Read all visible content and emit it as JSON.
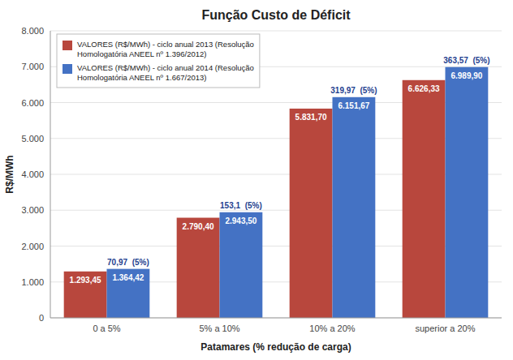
{
  "chart_data": {
    "type": "bar",
    "title": "Função Custo de Déficit",
    "xlabel": "Patamares (% redução de carga)",
    "ylabel": "R$/MWh",
    "categories": [
      "0 a 5%",
      "5% a 10%",
      "10% a 20%",
      "superior a 20%"
    ],
    "series": [
      {
        "name": "VALORES (R$/MWh) - ciclo anual 2013 (Resolução\nHomologatória ANEEL nº 1.396/2012)",
        "color": "#B8473D",
        "values": [
          1293.45,
          2790.4,
          5831.7,
          6626.33
        ],
        "value_labels": [
          "1.293,45",
          "2.790,40",
          "5.831,70",
          "6.626,33"
        ]
      },
      {
        "name": "VALORES (R$/MWh) - ciclo anual 2014 (Resolução\nHomologatória ANEEL nº 1.667/2013)",
        "color": "#4472C4",
        "values": [
          1364.42,
          2943.5,
          6151.67,
          6989.9
        ],
        "value_labels": [
          "1.364,42",
          "2.943,50",
          "6.151,67",
          "6.989,90"
        ]
      }
    ],
    "annotations": [
      "70,97  (5%)",
      "153,1  (5%)",
      "319,97  (5%)",
      "363,57  (5%)"
    ],
    "ylim": [
      0,
      8000
    ],
    "yticks": [
      0,
      {
        "value": 1000,
        "label": "1.000"
      },
      {
        "value": 2000,
        "label": "2.000"
      },
      {
        "value": 3000,
        "label": "3.000"
      },
      {
        "value": 4000,
        "label": "4.000"
      },
      {
        "value": 5000,
        "label": "5.000"
      },
      {
        "value": 6000,
        "label": "6.000"
      },
      {
        "value": 7000,
        "label": "7.000"
      },
      {
        "value": 8000,
        "label": "8.000"
      }
    ],
    "grid": true,
    "legend": "upper left",
    "data_labels": true
  }
}
